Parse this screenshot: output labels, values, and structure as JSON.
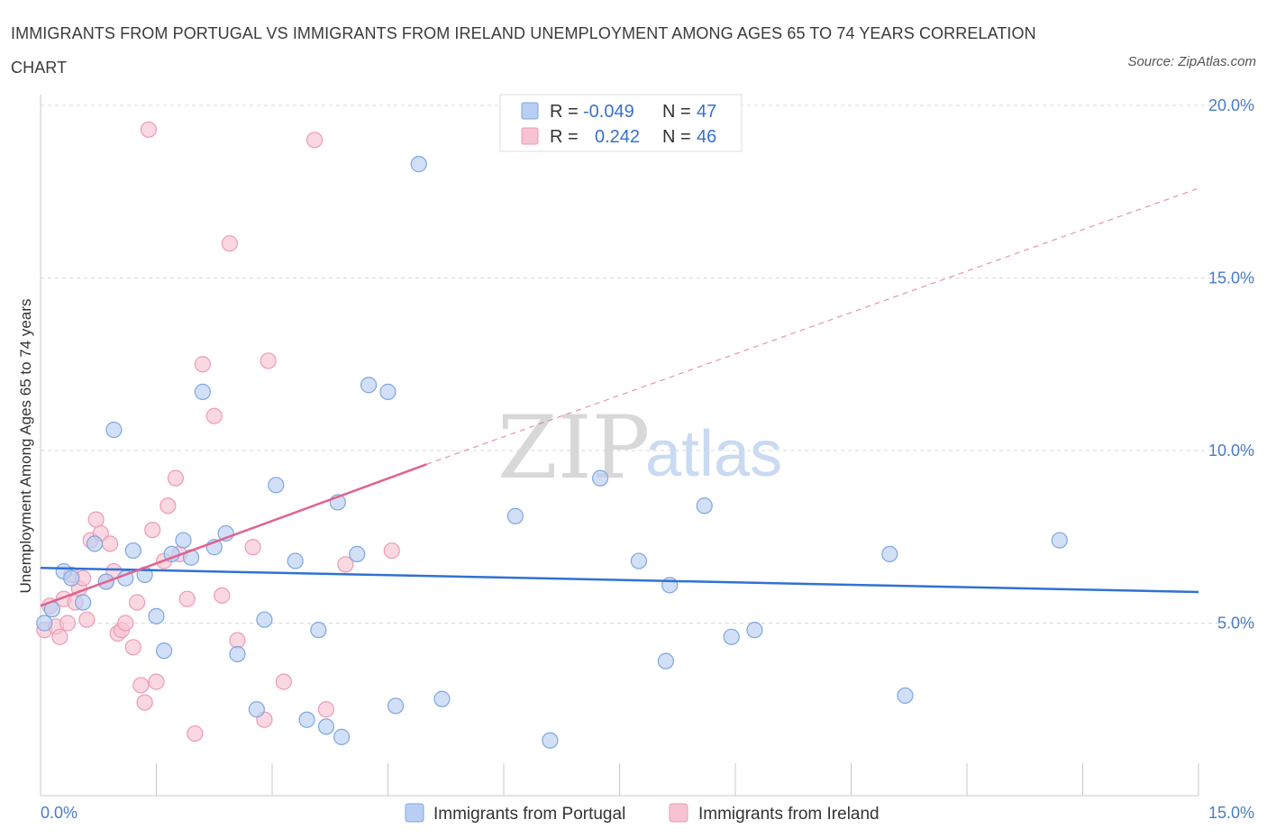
{
  "title": "IMMIGRANTS FROM PORTUGAL VS IMMIGRANTS FROM IRELAND UNEMPLOYMENT AMONG AGES 65 TO 74 YEARS CORRELATION CHART",
  "source": "Source: ZipAtlas.com",
  "watermark": {
    "zip": "ZIP",
    "atlas": "atlas"
  },
  "colors": {
    "portugal_fill": "#b8cff3",
    "portugal_stroke": "#7ea6e0",
    "portugal_line": "#2f72d4",
    "ireland_fill": "#f7c3d3",
    "ireland_stroke": "#ee9ab4",
    "ireland_line": "#e0628e",
    "grid": "#d9d9d9",
    "tick_text": "#4a7cc7"
  },
  "legend": {
    "rows": [
      {
        "r_label": "R =",
        "r_value": "-0.049",
        "n_label": "N =",
        "n_value": "47"
      },
      {
        "r_label": "R =",
        "r_value": "0.242",
        "n_label": "N =",
        "n_value": "46"
      }
    ]
  },
  "chart_data": {
    "type": "scatter",
    "title": "IMMIGRANTS FROM PORTUGAL VS IMMIGRANTS FROM IRELAND UNEMPLOYMENT AMONG AGES 65 TO 74 YEARS CORRELATION CHART",
    "xlabel": "",
    "ylabel": "Unemployment Among Ages 65 to 74 years",
    "xlim": [
      0,
      15
    ],
    "ylim": [
      0,
      20
    ],
    "x_tick_labels": [
      "0.0%",
      "15.0%"
    ],
    "y_ticks": [
      5,
      10,
      15,
      20
    ],
    "y_tick_labels": [
      "5.0%",
      "10.0%",
      "15.0%",
      "20.0%"
    ],
    "series": [
      {
        "name": "Immigrants from Portugal",
        "r": -0.049,
        "n": 47,
        "trend": {
          "x": [
            0.0,
            15.0
          ],
          "y": [
            6.6,
            5.9
          ],
          "dashed_to": null
        },
        "points": [
          [
            0.05,
            5.0
          ],
          [
            0.15,
            5.4
          ],
          [
            0.3,
            6.5
          ],
          [
            0.4,
            6.3
          ],
          [
            0.55,
            5.6
          ],
          [
            0.7,
            7.3
          ],
          [
            0.85,
            6.2
          ],
          [
            0.95,
            10.6
          ],
          [
            1.1,
            6.3
          ],
          [
            1.2,
            7.1
          ],
          [
            1.35,
            6.4
          ],
          [
            1.5,
            5.2
          ],
          [
            1.6,
            4.2
          ],
          [
            1.7,
            7.0
          ],
          [
            1.85,
            7.4
          ],
          [
            1.95,
            6.9
          ],
          [
            2.1,
            11.7
          ],
          [
            2.25,
            7.2
          ],
          [
            2.4,
            7.6
          ],
          [
            2.55,
            4.1
          ],
          [
            2.8,
            2.5
          ],
          [
            2.9,
            5.1
          ],
          [
            3.05,
            9.0
          ],
          [
            3.3,
            6.8
          ],
          [
            3.45,
            2.2
          ],
          [
            3.6,
            4.8
          ],
          [
            3.7,
            2.0
          ],
          [
            3.85,
            8.5
          ],
          [
            3.9,
            1.7
          ],
          [
            4.1,
            7.0
          ],
          [
            4.25,
            11.9
          ],
          [
            4.5,
            11.7
          ],
          [
            4.6,
            2.6
          ],
          [
            4.9,
            18.3
          ],
          [
            5.2,
            2.8
          ],
          [
            6.15,
            8.1
          ],
          [
            6.6,
            1.6
          ],
          [
            7.25,
            9.2
          ],
          [
            7.75,
            6.8
          ],
          [
            8.1,
            3.9
          ],
          [
            8.15,
            6.1
          ],
          [
            8.6,
            8.4
          ],
          [
            8.95,
            4.6
          ],
          [
            9.25,
            4.8
          ],
          [
            11.0,
            7.0
          ],
          [
            11.2,
            2.9
          ],
          [
            13.2,
            7.4
          ]
        ]
      },
      {
        "name": "Immigrants from Ireland",
        "r": 0.242,
        "n": 46,
        "trend": {
          "x": [
            0.0,
            5.0
          ],
          "y": [
            5.5,
            9.6
          ],
          "dashed_to": [
            15.0,
            17.6
          ]
        },
        "points": [
          [
            0.05,
            4.8
          ],
          [
            0.12,
            5.5
          ],
          [
            0.2,
            4.9
          ],
          [
            0.25,
            4.6
          ],
          [
            0.3,
            5.7
          ],
          [
            0.4,
            6.4
          ],
          [
            0.45,
            5.6
          ],
          [
            0.5,
            6.0
          ],
          [
            0.6,
            5.1
          ],
          [
            0.65,
            7.4
          ],
          [
            0.72,
            8.0
          ],
          [
            0.78,
            7.6
          ],
          [
            0.85,
            6.2
          ],
          [
            0.9,
            7.3
          ],
          [
            0.95,
            6.5
          ],
          [
            1.0,
            4.7
          ],
          [
            1.05,
            4.8
          ],
          [
            1.1,
            5.0
          ],
          [
            1.2,
            4.3
          ],
          [
            1.25,
            5.6
          ],
          [
            1.3,
            3.2
          ],
          [
            1.35,
            2.7
          ],
          [
            1.45,
            7.7
          ],
          [
            1.5,
            3.3
          ],
          [
            1.6,
            6.8
          ],
          [
            1.65,
            8.4
          ],
          [
            1.75,
            9.2
          ],
          [
            1.8,
            7.0
          ],
          [
            1.9,
            5.7
          ],
          [
            2.0,
            1.8
          ],
          [
            2.1,
            12.5
          ],
          [
            2.25,
            11.0
          ],
          [
            2.35,
            5.8
          ],
          [
            2.45,
            16.0
          ],
          [
            2.55,
            4.5
          ],
          [
            2.75,
            7.2
          ],
          [
            2.9,
            2.2
          ],
          [
            2.95,
            12.6
          ],
          [
            3.15,
            3.3
          ],
          [
            3.55,
            19.0
          ],
          [
            3.7,
            2.5
          ],
          [
            3.95,
            6.7
          ],
          [
            4.55,
            7.1
          ],
          [
            1.4,
            19.3
          ],
          [
            0.55,
            6.3
          ],
          [
            0.35,
            5.0
          ]
        ]
      }
    ],
    "legend_position": "top-center"
  }
}
